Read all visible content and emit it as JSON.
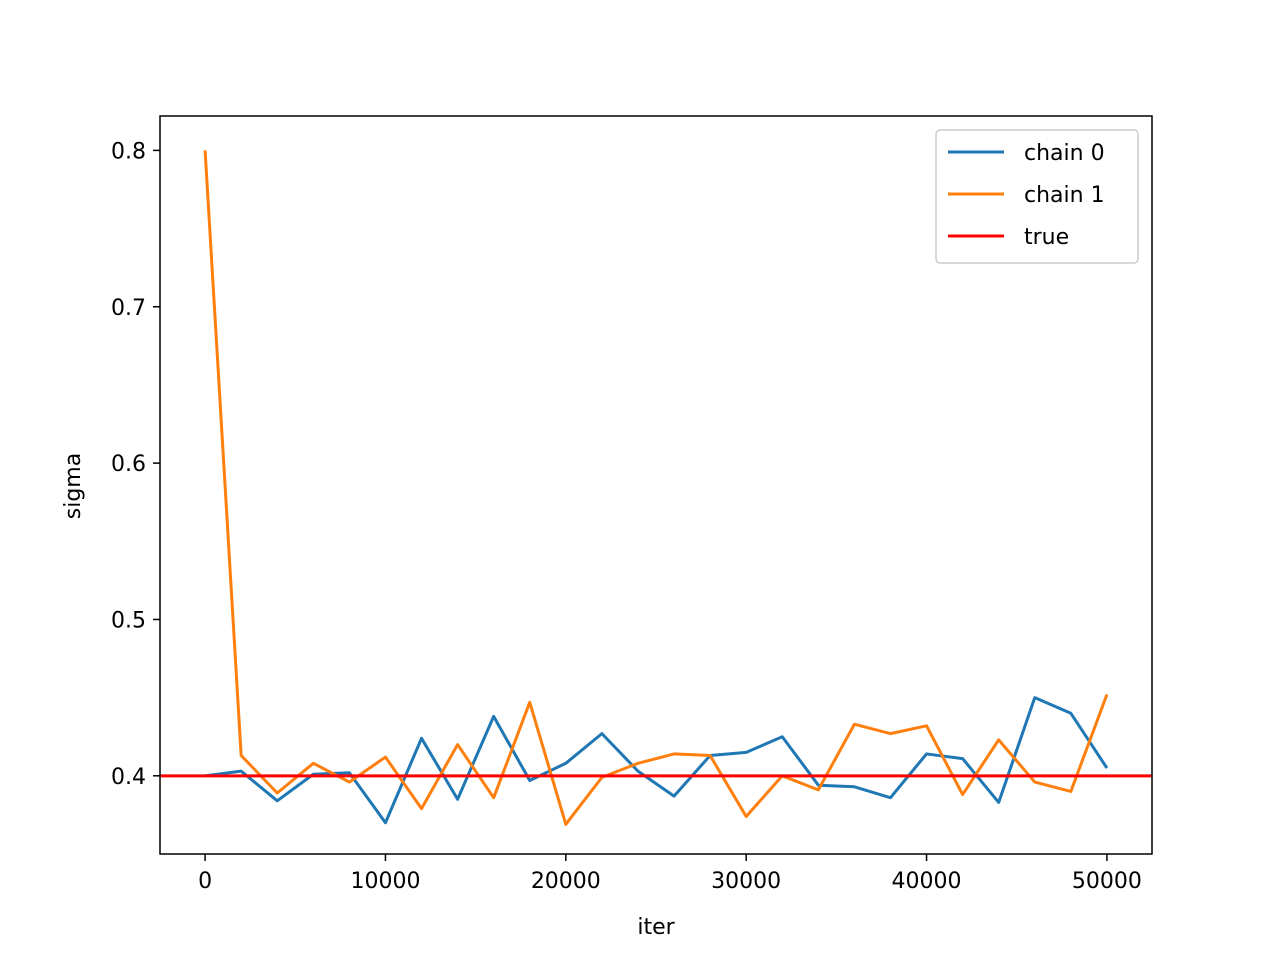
{
  "chart_data": {
    "type": "line",
    "xlabel": "iter",
    "ylabel": "sigma",
    "xlim": [
      -2500,
      52500
    ],
    "ylim": [
      0.35,
      0.822
    ],
    "x_ticks": [
      0,
      10000,
      20000,
      30000,
      40000,
      50000
    ],
    "y_ticks": [
      0.4,
      0.5,
      0.6,
      0.7,
      0.8
    ],
    "x_tick_labels": [
      "0",
      "10000",
      "20000",
      "30000",
      "40000",
      "50000"
    ],
    "y_tick_labels": [
      "0.4",
      "0.5",
      "0.6",
      "0.7",
      "0.8"
    ],
    "legend_position": "top-right",
    "grid": false,
    "x": [
      0,
      2000,
      4000,
      6000,
      8000,
      10000,
      12000,
      14000,
      16000,
      18000,
      20000,
      22000,
      24000,
      26000,
      28000,
      30000,
      32000,
      34000,
      36000,
      38000,
      40000,
      42000,
      44000,
      46000,
      48000,
      50000
    ],
    "series": [
      {
        "name": "chain 0",
        "color": "#1f77b4",
        "values": [
          0.4,
          0.403,
          0.384,
          0.401,
          0.402,
          0.37,
          0.424,
          0.385,
          0.438,
          0.397,
          0.408,
          0.427,
          0.403,
          0.387,
          0.413,
          0.415,
          0.425,
          0.394,
          0.393,
          0.386,
          0.414,
          0.411,
          0.383,
          0.45,
          0.44,
          0.405
        ]
      },
      {
        "name": "chain 1",
        "color": "#ff7f0e",
        "values": [
          0.8,
          0.413,
          0.389,
          0.408,
          0.396,
          0.412,
          0.379,
          0.42,
          0.386,
          0.447,
          0.369,
          0.399,
          0.408,
          0.414,
          0.413,
          0.374,
          0.4,
          0.391,
          0.433,
          0.427,
          0.432,
          0.388,
          0.423,
          0.396,
          0.39,
          0.452
        ]
      }
    ],
    "reference_line": {
      "name": "true",
      "color": "#ff0000",
      "y": 0.4
    }
  }
}
